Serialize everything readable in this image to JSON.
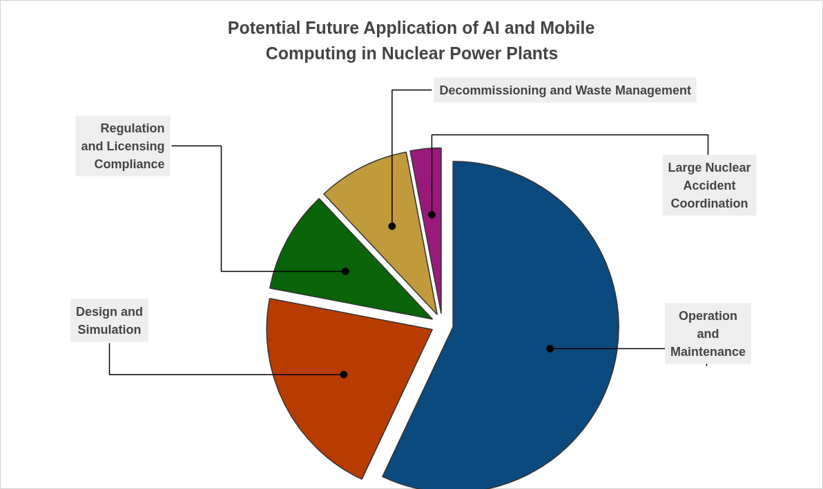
{
  "chart_data": {
    "type": "pie",
    "title": "Potential Future Application of AI and Mobile Computing in Nuclear Power Plants",
    "categories": [
      "Operation and Maintenance",
      "Design and Simulation",
      "Regulation and Licensing Compliance",
      "Decommissioning and Waste Management",
      "Large Nuclear Accident Coordination"
    ],
    "values": [
      57,
      21,
      10,
      9,
      3
    ],
    "colors": [
      "#0b4a7e",
      "#b83c00",
      "#0a640a",
      "#c19a3c",
      "#9a1a7c"
    ]
  }
}
